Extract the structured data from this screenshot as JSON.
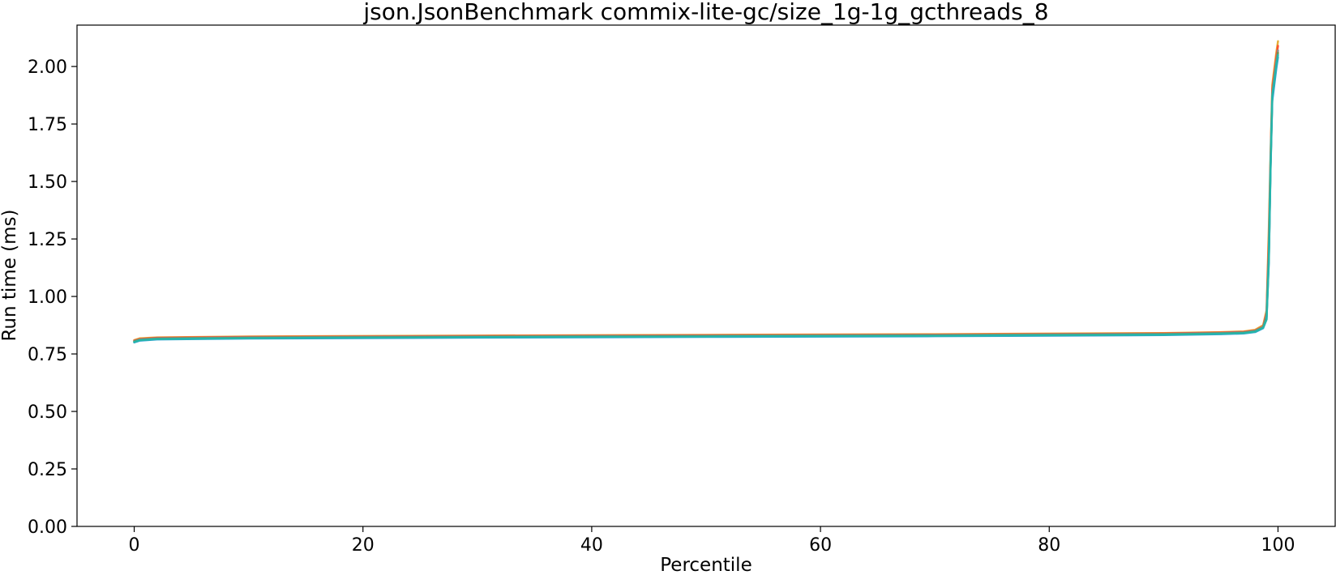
{
  "chart_data": {
    "type": "line",
    "title": "json.JsonBenchmark commix-lite-gc/size_1g-1g_gcthreads_8",
    "xlabel": "Percentile",
    "ylabel": "Run time (ms)",
    "xlim": [
      -5,
      105
    ],
    "ylim": [
      0,
      2.18
    ],
    "xticks": [
      0,
      20,
      40,
      60,
      80,
      100
    ],
    "xtick_labels": [
      "0",
      "20",
      "40",
      "60",
      "80",
      "100"
    ],
    "yticks": [
      0.0,
      0.25,
      0.5,
      0.75,
      1.0,
      1.25,
      1.5,
      1.75,
      2.0
    ],
    "ytick_labels": [
      "0.00",
      "0.25",
      "0.50",
      "0.75",
      "1.00",
      "1.25",
      "1.50",
      "1.75",
      "2.00"
    ],
    "grid": false,
    "legend": "none",
    "series": [
      {
        "color": "#e5ae38",
        "x": [
          0,
          0.5,
          2,
          10,
          30,
          50,
          70,
          90,
          95,
          97,
          98,
          98.7,
          99,
          99.2,
          99.35,
          99.5,
          99.7,
          99.85,
          100
        ],
        "y": [
          0.81,
          0.818,
          0.822,
          0.826,
          0.83,
          0.833,
          0.836,
          0.841,
          0.845,
          0.848,
          0.855,
          0.875,
          0.94,
          1.3,
          1.62,
          1.92,
          2.0,
          2.06,
          2.11
        ]
      },
      {
        "color": "#fc4f30",
        "x": [
          0,
          0.5,
          2,
          10,
          30,
          50,
          70,
          90,
          95,
          97,
          98,
          98.7,
          99,
          99.2,
          99.35,
          99.5,
          99.7,
          99.85,
          100
        ],
        "y": [
          0.808,
          0.815,
          0.82,
          0.824,
          0.828,
          0.831,
          0.834,
          0.839,
          0.843,
          0.846,
          0.852,
          0.87,
          0.93,
          1.25,
          1.6,
          1.9,
          1.98,
          2.04,
          2.09
        ]
      },
      {
        "color": "#8b8b8b",
        "x": [
          0,
          0.5,
          2,
          10,
          30,
          50,
          70,
          90,
          95,
          97,
          98,
          98.7,
          99,
          99.2,
          99.35,
          99.5,
          99.7,
          99.85,
          100
        ],
        "y": [
          0.806,
          0.813,
          0.818,
          0.822,
          0.826,
          0.829,
          0.832,
          0.837,
          0.841,
          0.844,
          0.85,
          0.868,
          0.92,
          1.2,
          1.58,
          1.88,
          1.96,
          2.02,
          2.07
        ]
      },
      {
        "color": "#6d904f",
        "x": [
          0,
          0.5,
          2,
          10,
          30,
          50,
          70,
          90,
          95,
          97,
          98,
          98.7,
          99,
          99.2,
          99.35,
          99.5,
          99.7,
          99.85,
          100
        ],
        "y": [
          0.804,
          0.811,
          0.816,
          0.82,
          0.824,
          0.827,
          0.83,
          0.835,
          0.839,
          0.842,
          0.848,
          0.865,
          0.91,
          1.17,
          1.56,
          1.86,
          1.94,
          2.0,
          2.06
        ]
      },
      {
        "color": "#30a2da",
        "x": [
          0,
          0.5,
          2,
          10,
          30,
          50,
          70,
          90,
          95,
          97,
          98,
          98.7,
          99,
          99.2,
          99.35,
          99.5,
          99.7,
          99.85,
          100
        ],
        "y": [
          0.8,
          0.808,
          0.813,
          0.817,
          0.821,
          0.824,
          0.827,
          0.832,
          0.836,
          0.839,
          0.845,
          0.862,
          0.9,
          1.15,
          1.55,
          1.85,
          1.93,
          1.99,
          2.04
        ]
      },
      {
        "color": "#26b5a8",
        "x": [
          0,
          0.5,
          2,
          10,
          30,
          50,
          70,
          90,
          95,
          97,
          98,
          98.7,
          99,
          99.2,
          99.35,
          99.5,
          99.7,
          99.85,
          100
        ],
        "y": [
          0.802,
          0.81,
          0.815,
          0.819,
          0.823,
          0.826,
          0.829,
          0.834,
          0.838,
          0.841,
          0.847,
          0.864,
          0.9,
          1.16,
          1.57,
          1.87,
          1.95,
          2.01,
          2.05
        ]
      }
    ]
  }
}
